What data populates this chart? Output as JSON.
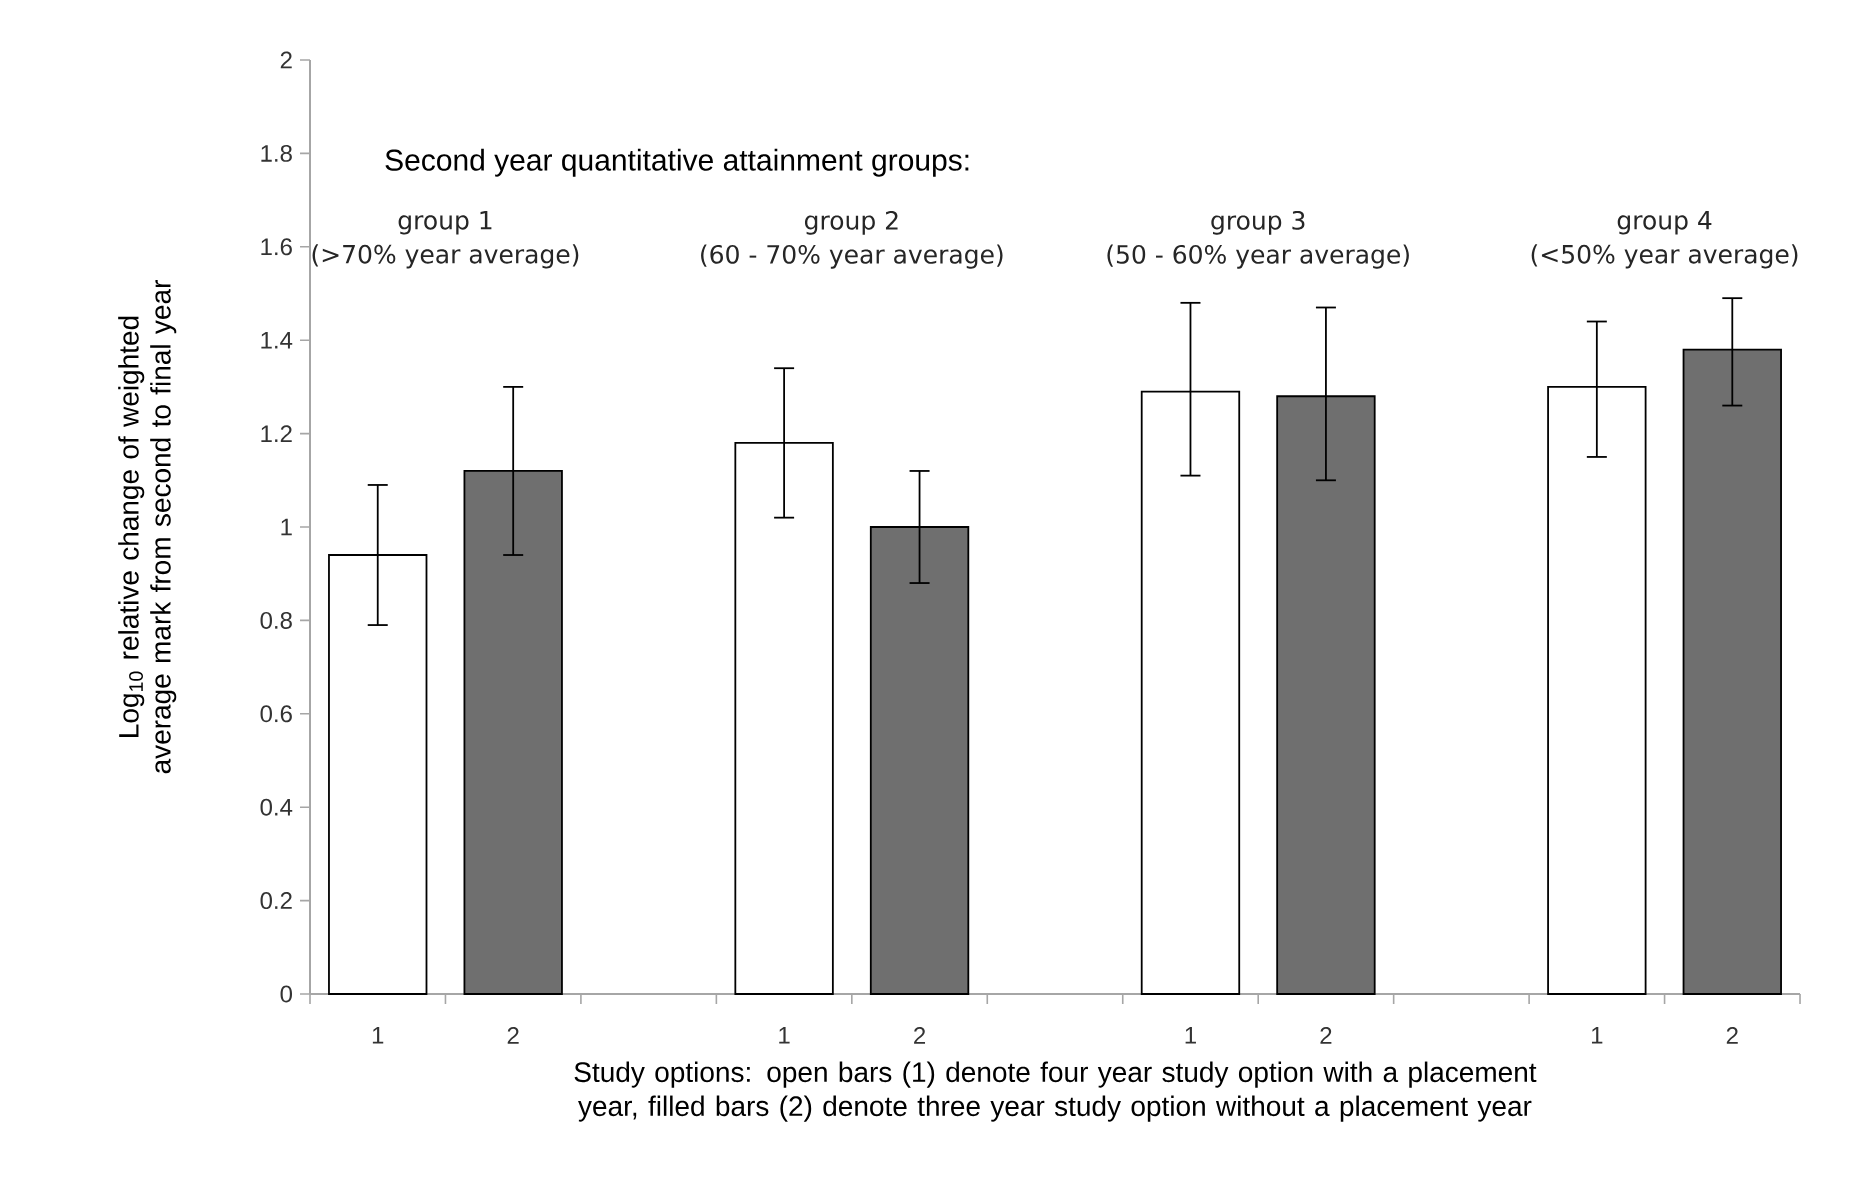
{
  "chart_data": {
    "type": "bar",
    "categories": [
      "1",
      "2",
      null,
      "1",
      "2",
      null,
      "1",
      "2",
      null,
      "1",
      "2"
    ],
    "series": [
      {
        "color": "#ffffff",
        "values": [
          0.94,
          null,
          null,
          1.18,
          null,
          null,
          1.29,
          null,
          null,
          1.3,
          null
        ],
        "errors": [
          [
            0.79,
            1.09
          ],
          null,
          null,
          [
            1.02,
            1.34
          ],
          null,
          null,
          [
            1.11,
            1.48
          ],
          null,
          null,
          [
            1.15,
            1.44
          ],
          null
        ]
      },
      {
        "color": "#6f6f6f",
        "values": [
          null,
          1.12,
          null,
          null,
          1.0,
          null,
          null,
          1.28,
          null,
          null,
          1.38
        ],
        "errors": [
          null,
          [
            0.94,
            1.3
          ],
          null,
          null,
          [
            0.88,
            1.12
          ],
          null,
          null,
          [
            1.1,
            1.47
          ],
          null,
          null,
          [
            1.26,
            1.49
          ]
        ]
      }
    ],
    "ylim": [
      0,
      2
    ],
    "yticks": [
      0,
      0.2,
      0.4,
      0.6,
      0.8,
      1,
      1.2,
      1.4,
      1.6,
      1.8,
      2
    ],
    "ylabel": "Log$_{10}$ relative change of weighted average mark from second to final year",
    "xlabel": "Study options: open bars (1) denote four year study option with a placement year, filled bars (2) denote three year study option without a placement year",
    "annotations": [
      "Second year quantitative attainment groups:",
      "group 1",
      "(>70% year average)",
      "group 2",
      "(60 - 70% year average)",
      "group 3",
      "(50 - 60% year average)",
      "group 4",
      "(<50% year average)"
    ]
  }
}
